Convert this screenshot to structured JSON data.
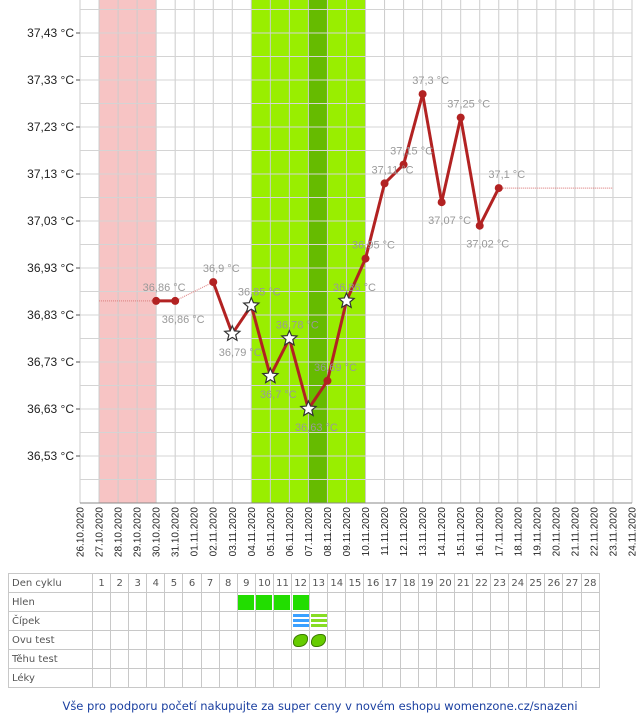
{
  "chart_data": {
    "type": "line",
    "ylabel_unit": "°C",
    "y_ticks": [
      "37,43 °C",
      "37,33 °C",
      "37,23 °C",
      "37,13 °C",
      "37,03 °C",
      "36,93 °C",
      "36,83 °C",
      "36,73 °C",
      "36,63 °C",
      "36,53 °C"
    ],
    "y_tick_values": [
      37.43,
      37.33,
      37.23,
      37.13,
      37.03,
      36.93,
      36.83,
      36.73,
      36.63,
      36.53
    ],
    "ylim": [
      36.43,
      37.49
    ],
    "x_dates": [
      "26.10.2020",
      "27.10.2020",
      "28.10.2020",
      "29.10.2020",
      "30.10.2020",
      "31.10.2020",
      "01.11.2020",
      "02.11.2020",
      "03.11.2020",
      "04.11.2020",
      "05.11.2020",
      "06.11.2020",
      "07.11.2020",
      "08.11.2020",
      "09.11.2020",
      "10.11.2020",
      "11.11.2020",
      "12.11.2020",
      "13.11.2020",
      "14.11.2020",
      "15.11.2020",
      "16.11.2020",
      "17.11.2020",
      "18.11.2020",
      "19.11.2020",
      "20.11.2020",
      "21.11.2020",
      "22.11.2020",
      "23.11.2020",
      "24.11.2020"
    ],
    "bands": [
      {
        "name": "menstruation",
        "from": "27.10.2020",
        "to": "29.10.2020",
        "color": "#f7c4c4"
      },
      {
        "name": "fertile",
        "from": "04.11.2020",
        "to": "09.11.2020",
        "color": "#99ee00"
      },
      {
        "name": "ovulation",
        "from": "07.11.2020",
        "to": "07.11.2020",
        "color": "#66bb00"
      }
    ],
    "series": [
      {
        "values": [
          {
            "date": "30.10.2020",
            "y": 36.86,
            "label": "36,86 °C",
            "marker": "dot"
          },
          {
            "date": "31.10.2020",
            "y": 36.86,
            "label": "36,86 °C",
            "marker": "dot"
          },
          {
            "date": "02.11.2020",
            "y": 36.9,
            "label": "36,9 °C",
            "marker": "dot"
          },
          {
            "date": "03.11.2020",
            "y": 36.79,
            "label": "36,79 °C",
            "marker": "star"
          },
          {
            "date": "04.11.2020",
            "y": 36.85,
            "label": "36,85 °C",
            "marker": "star"
          },
          {
            "date": "05.11.2020",
            "y": 36.7,
            "label": "36,7 °C",
            "marker": "star"
          },
          {
            "date": "06.11.2020",
            "y": 36.78,
            "label": "36,78 °C",
            "marker": "star"
          },
          {
            "date": "07.11.2020",
            "y": 36.63,
            "label": "36,63 °C",
            "marker": "star"
          },
          {
            "date": "08.11.2020",
            "y": 36.69,
            "label": "36,69 °C",
            "marker": "dot"
          },
          {
            "date": "09.11.2020",
            "y": 36.86,
            "label": "36,86 °C",
            "marker": "star"
          },
          {
            "date": "10.11.2020",
            "y": 36.95,
            "label": "36,95 °C",
            "marker": "dot"
          },
          {
            "date": "11.11.2020",
            "y": 37.11,
            "label": "37,11 °C",
            "marker": "dot"
          },
          {
            "date": "12.11.2020",
            "y": 37.15,
            "label": "37,15 °C",
            "marker": "dot"
          },
          {
            "date": "13.11.2020",
            "y": 37.3,
            "label": "37,3 °C",
            "marker": "dot"
          },
          {
            "date": "14.11.2020",
            "y": 37.07,
            "label": "37,07 °C",
            "marker": "dot"
          },
          {
            "date": "15.11.2020",
            "y": 37.25,
            "label": "37,25 °C",
            "marker": "dot"
          },
          {
            "date": "16.11.2020",
            "y": 37.02,
            "label": "37,02 °C",
            "marker": "dot"
          },
          {
            "date": "17.11.2020",
            "y": 37.1,
            "label": "37,1 °C",
            "marker": "dot"
          }
        ],
        "color": "#b22222"
      }
    ],
    "extrapolation": {
      "before": {
        "from": "27.10.2020",
        "to": "30.10.2020",
        "y": 36.86
      },
      "after": {
        "from": "17.11.2020",
        "to": "23.11.2020",
        "y": 37.1
      }
    },
    "grid": true
  },
  "table": {
    "rows": [
      "Den cyklu",
      "Hlen",
      "Čípek",
      "Ovu test",
      "Těhu test",
      "Léky"
    ],
    "days": [
      "1",
      "2",
      "3",
      "4",
      "5",
      "6",
      "7",
      "8",
      "9",
      "10",
      "11",
      "12",
      "13",
      "14",
      "15",
      "16",
      "17",
      "18",
      "19",
      "20",
      "21",
      "22",
      "23",
      "24",
      "25",
      "26",
      "27",
      "28"
    ],
    "hlen_days": [
      9,
      10,
      11,
      12
    ],
    "cipek_days": [
      12,
      13
    ],
    "ovu_days": [
      12,
      13
    ],
    "colors": {
      "hlen": "#22dd00",
      "cipek_blue": "#3aa0ff",
      "cipek_green": "#88dd22",
      "ovu": "#66cc00"
    }
  },
  "footer": {
    "text": "Vše pro podporu početí nakupujte za super ceny v novém eshopu womenzone.cz/snazeni"
  }
}
